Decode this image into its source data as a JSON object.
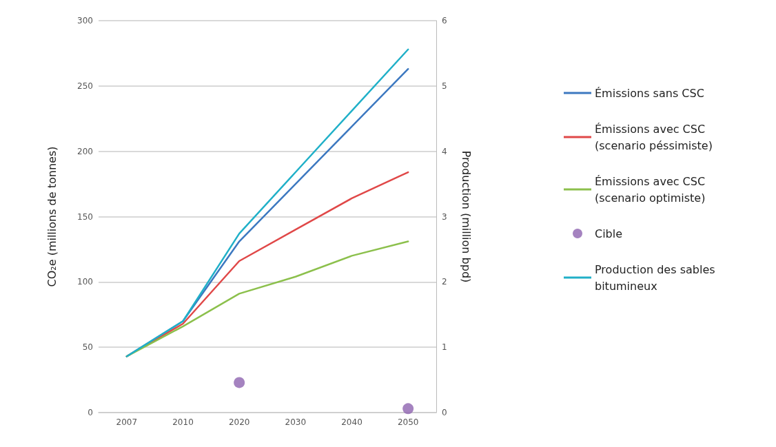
{
  "chart_data": {
    "type": "line",
    "ylabel": "CO₂e (millions de tonnes)",
    "y2label": "Production (million bpd)",
    "categories": [
      "2007",
      "2010",
      "2020",
      "2030",
      "2040",
      "2050"
    ],
    "series": [
      {
        "name": "Émissions sans CSC",
        "color": "#3c78c0",
        "values": [
          43,
          70,
          131,
          175,
          219,
          263
        ]
      },
      {
        "name": "Émissions avec CSC (scenario péssimiste)",
        "color": "#e04848",
        "values": [
          43,
          68,
          116,
          140,
          164,
          184
        ]
      },
      {
        "name": "Émissions avec CSC (scenario optimiste)",
        "color": "#8cc04c",
        "values": [
          43,
          66,
          91,
          104,
          120,
          131
        ]
      },
      {
        "name": "Cible",
        "type": "scatter",
        "color": "#8e64b0",
        "values": [
          null,
          null,
          23,
          null,
          null,
          3
        ]
      },
      {
        "name": "Production des sables bitumineux",
        "color": "#20b0c8",
        "axis": "y2",
        "values": [
          0.86,
          1.4,
          2.74,
          3.68,
          4.62,
          5.56
        ]
      }
    ],
    "ylim": [
      0,
      300
    ],
    "yticks": [
      0,
      50,
      100,
      150,
      200,
      250,
      300
    ],
    "y2lim": [
      0,
      6
    ],
    "y2ticks": [
      0,
      1,
      2,
      3,
      4,
      5,
      6
    ],
    "grid": "y",
    "legend": "right",
    "line_style": "solid"
  }
}
